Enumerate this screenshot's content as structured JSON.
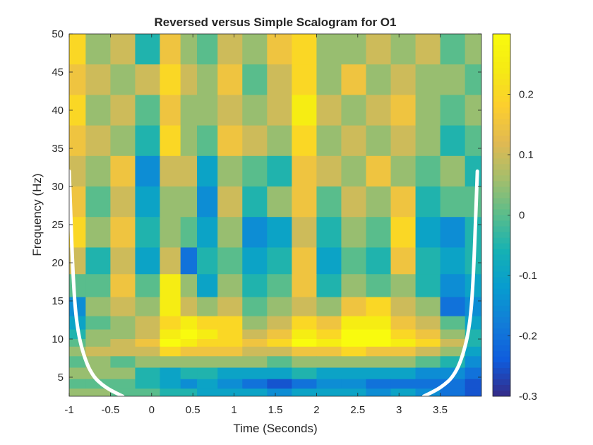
{
  "chart_data": {
    "type": "heatmap",
    "title": "Reversed versus Simple Scalogram for O1",
    "xlabel": "Time (Seconds)",
    "ylabel": "Frequency (Hz)",
    "xlim": [
      -1,
      4
    ],
    "ylim": [
      2.5,
      50
    ],
    "x_ticks": [
      -1,
      -0.5,
      0,
      0.5,
      1,
      1.5,
      2,
      2.5,
      3,
      3.5
    ],
    "x_tick_labels": [
      "-1",
      "-0.5",
      "0",
      "0.5",
      "1",
      "1.5",
      "2",
      "2.5",
      "3",
      "3.5"
    ],
    "y_ticks": [
      5,
      10,
      15,
      20,
      25,
      30,
      35,
      40,
      45,
      50
    ],
    "y_tick_labels": [
      "5",
      "10",
      "15",
      "20",
      "25",
      "30",
      "35",
      "40",
      "45",
      "50"
    ],
    "colorbar": {
      "colormap": "parula",
      "clim": [
        -0.3,
        0.3
      ],
      "ticks": [
        -0.3,
        -0.2,
        -0.1,
        0,
        0.1,
        0.2
      ],
      "tick_labels": [
        "-0.3",
        "-0.2",
        "-0.1",
        "0",
        "0.1",
        "0.2"
      ]
    },
    "frequencies_hz": [
      48,
      44,
      40,
      36,
      32,
      28,
      24,
      20,
      17,
      14,
      12,
      10.5,
      9.5,
      8.5,
      7,
      5.5,
      4,
      3
    ],
    "time_columns": [
      -0.95,
      -0.65,
      -0.35,
      -0.05,
      0.25,
      0.45,
      0.65,
      0.95,
      1.25,
      1.55,
      1.85,
      2.15,
      2.45,
      2.75,
      3.05,
      3.35,
      3.65,
      3.95
    ],
    "values": [
      [
        0.2,
        0.05,
        0.1,
        -0.05,
        0.15,
        0.05,
        0.0,
        0.1,
        0.05,
        0.15,
        0.2,
        0.05,
        0.05,
        0.1,
        0.05,
        0.1,
        0.0,
        0.05
      ],
      [
        0.15,
        0.1,
        0.05,
        0.1,
        0.2,
        0.1,
        0.05,
        0.15,
        0.0,
        0.1,
        0.2,
        0.05,
        0.15,
        0.05,
        0.1,
        0.05,
        0.05,
        0.0
      ],
      [
        0.2,
        0.05,
        0.1,
        0.0,
        0.15,
        0.05,
        0.05,
        0.1,
        0.05,
        0.1,
        0.25,
        0.1,
        0.05,
        0.1,
        0.15,
        0.05,
        0.0,
        0.05
      ],
      [
        0.15,
        0.1,
        0.05,
        -0.05,
        0.2,
        0.05,
        0.0,
        0.15,
        0.1,
        0.05,
        0.2,
        0.05,
        0.1,
        0.05,
        0.1,
        0.05,
        -0.05,
        0.0
      ],
      [
        0.1,
        0.05,
        0.15,
        -0.15,
        0.1,
        0.1,
        -0.1,
        0.05,
        0.0,
        -0.05,
        0.15,
        0.1,
        0.05,
        0.15,
        0.05,
        0.0,
        0.05,
        -0.05
      ],
      [
        0.15,
        0.0,
        0.1,
        -0.1,
        0.05,
        0.05,
        -0.15,
        0.1,
        -0.05,
        0.05,
        0.15,
        0.0,
        0.1,
        0.05,
        0.15,
        -0.05,
        0.0,
        0.0
      ],
      [
        0.2,
        0.05,
        0.15,
        -0.05,
        0.05,
        0.0,
        -0.1,
        0.05,
        -0.15,
        -0.1,
        0.1,
        -0.05,
        0.05,
        0.0,
        0.2,
        -0.1,
        -0.15,
        -0.05
      ],
      [
        0.1,
        -0.05,
        0.1,
        -0.1,
        0.1,
        -0.2,
        -0.05,
        0.0,
        -0.1,
        -0.05,
        0.15,
        -0.1,
        0.0,
        -0.05,
        0.15,
        -0.05,
        -0.1,
        -0.05
      ],
      [
        0.0,
        0.0,
        0.15,
        0.0,
        0.25,
        0.05,
        -0.1,
        0.05,
        -0.05,
        0.0,
        0.15,
        -0.05,
        0.05,
        0.0,
        0.05,
        -0.05,
        -0.15,
        -0.1
      ],
      [
        -0.15,
        0.05,
        0.1,
        0.05,
        0.25,
        0.1,
        0.05,
        0.1,
        0.0,
        0.05,
        0.1,
        0.05,
        0.15,
        0.2,
        0.1,
        0.05,
        -0.2,
        -0.15
      ],
      [
        -0.1,
        0.0,
        0.05,
        0.1,
        0.2,
        0.25,
        0.2,
        0.2,
        0.05,
        0.1,
        0.2,
        0.15,
        0.25,
        0.25,
        0.15,
        0.1,
        0.0,
        -0.1
      ],
      [
        -0.05,
        0.05,
        0.05,
        0.1,
        0.25,
        0.3,
        0.25,
        0.2,
        0.1,
        0.15,
        0.25,
        0.2,
        0.3,
        0.3,
        0.2,
        0.15,
        0.05,
        -0.05
      ],
      [
        0.0,
        0.05,
        0.1,
        0.15,
        0.3,
        0.25,
        0.2,
        0.2,
        0.15,
        0.2,
        0.3,
        0.25,
        0.3,
        0.3,
        0.25,
        0.2,
        0.1,
        -0.05
      ],
      [
        0.05,
        0.1,
        0.1,
        0.1,
        0.2,
        0.15,
        0.15,
        0.15,
        0.1,
        0.1,
        0.15,
        0.15,
        0.2,
        0.15,
        0.15,
        0.1,
        0.05,
        -0.1
      ],
      [
        0.0,
        0.05,
        0.0,
        0.05,
        0.05,
        0.05,
        0.05,
        0.05,
        0.05,
        0.0,
        0.05,
        0.05,
        0.05,
        0.05,
        0.05,
        0.0,
        -0.05,
        -0.15
      ],
      [
        0.05,
        0.05,
        0.05,
        -0.05,
        -0.1,
        -0.05,
        -0.05,
        -0.1,
        -0.1,
        -0.1,
        -0.05,
        -0.1,
        -0.1,
        -0.1,
        -0.1,
        -0.15,
        -0.15,
        -0.2
      ],
      [
        0.0,
        0.0,
        0.0,
        -0.05,
        -0.1,
        -0.15,
        -0.1,
        -0.15,
        -0.2,
        -0.25,
        -0.2,
        -0.15,
        -0.15,
        -0.2,
        -0.2,
        -0.2,
        -0.2,
        -0.25
      ],
      [
        0.05,
        0.05,
        0.0,
        0.0,
        -0.05,
        -0.05,
        -0.1,
        -0.1,
        -0.1,
        -0.15,
        -0.1,
        -0.1,
        -0.1,
        -0.15,
        -0.1,
        -0.15,
        -0.2,
        -0.25
      ]
    ],
    "cone_of_influence": {
      "color": "#ffffff",
      "left": [
        [
          -1,
          32
        ],
        [
          -0.95,
          17
        ],
        [
          -0.9,
          11
        ],
        [
          -0.8,
          7
        ],
        [
          -0.7,
          5
        ],
        [
          -0.6,
          4
        ],
        [
          -0.5,
          3.3
        ],
        [
          -0.35,
          2.5
        ]
      ],
      "right": [
        [
          3.3,
          2.5
        ],
        [
          3.45,
          3.3
        ],
        [
          3.55,
          4
        ],
        [
          3.65,
          5
        ],
        [
          3.75,
          7
        ],
        [
          3.85,
          11
        ],
        [
          3.9,
          17
        ],
        [
          3.95,
          32
        ]
      ]
    }
  }
}
